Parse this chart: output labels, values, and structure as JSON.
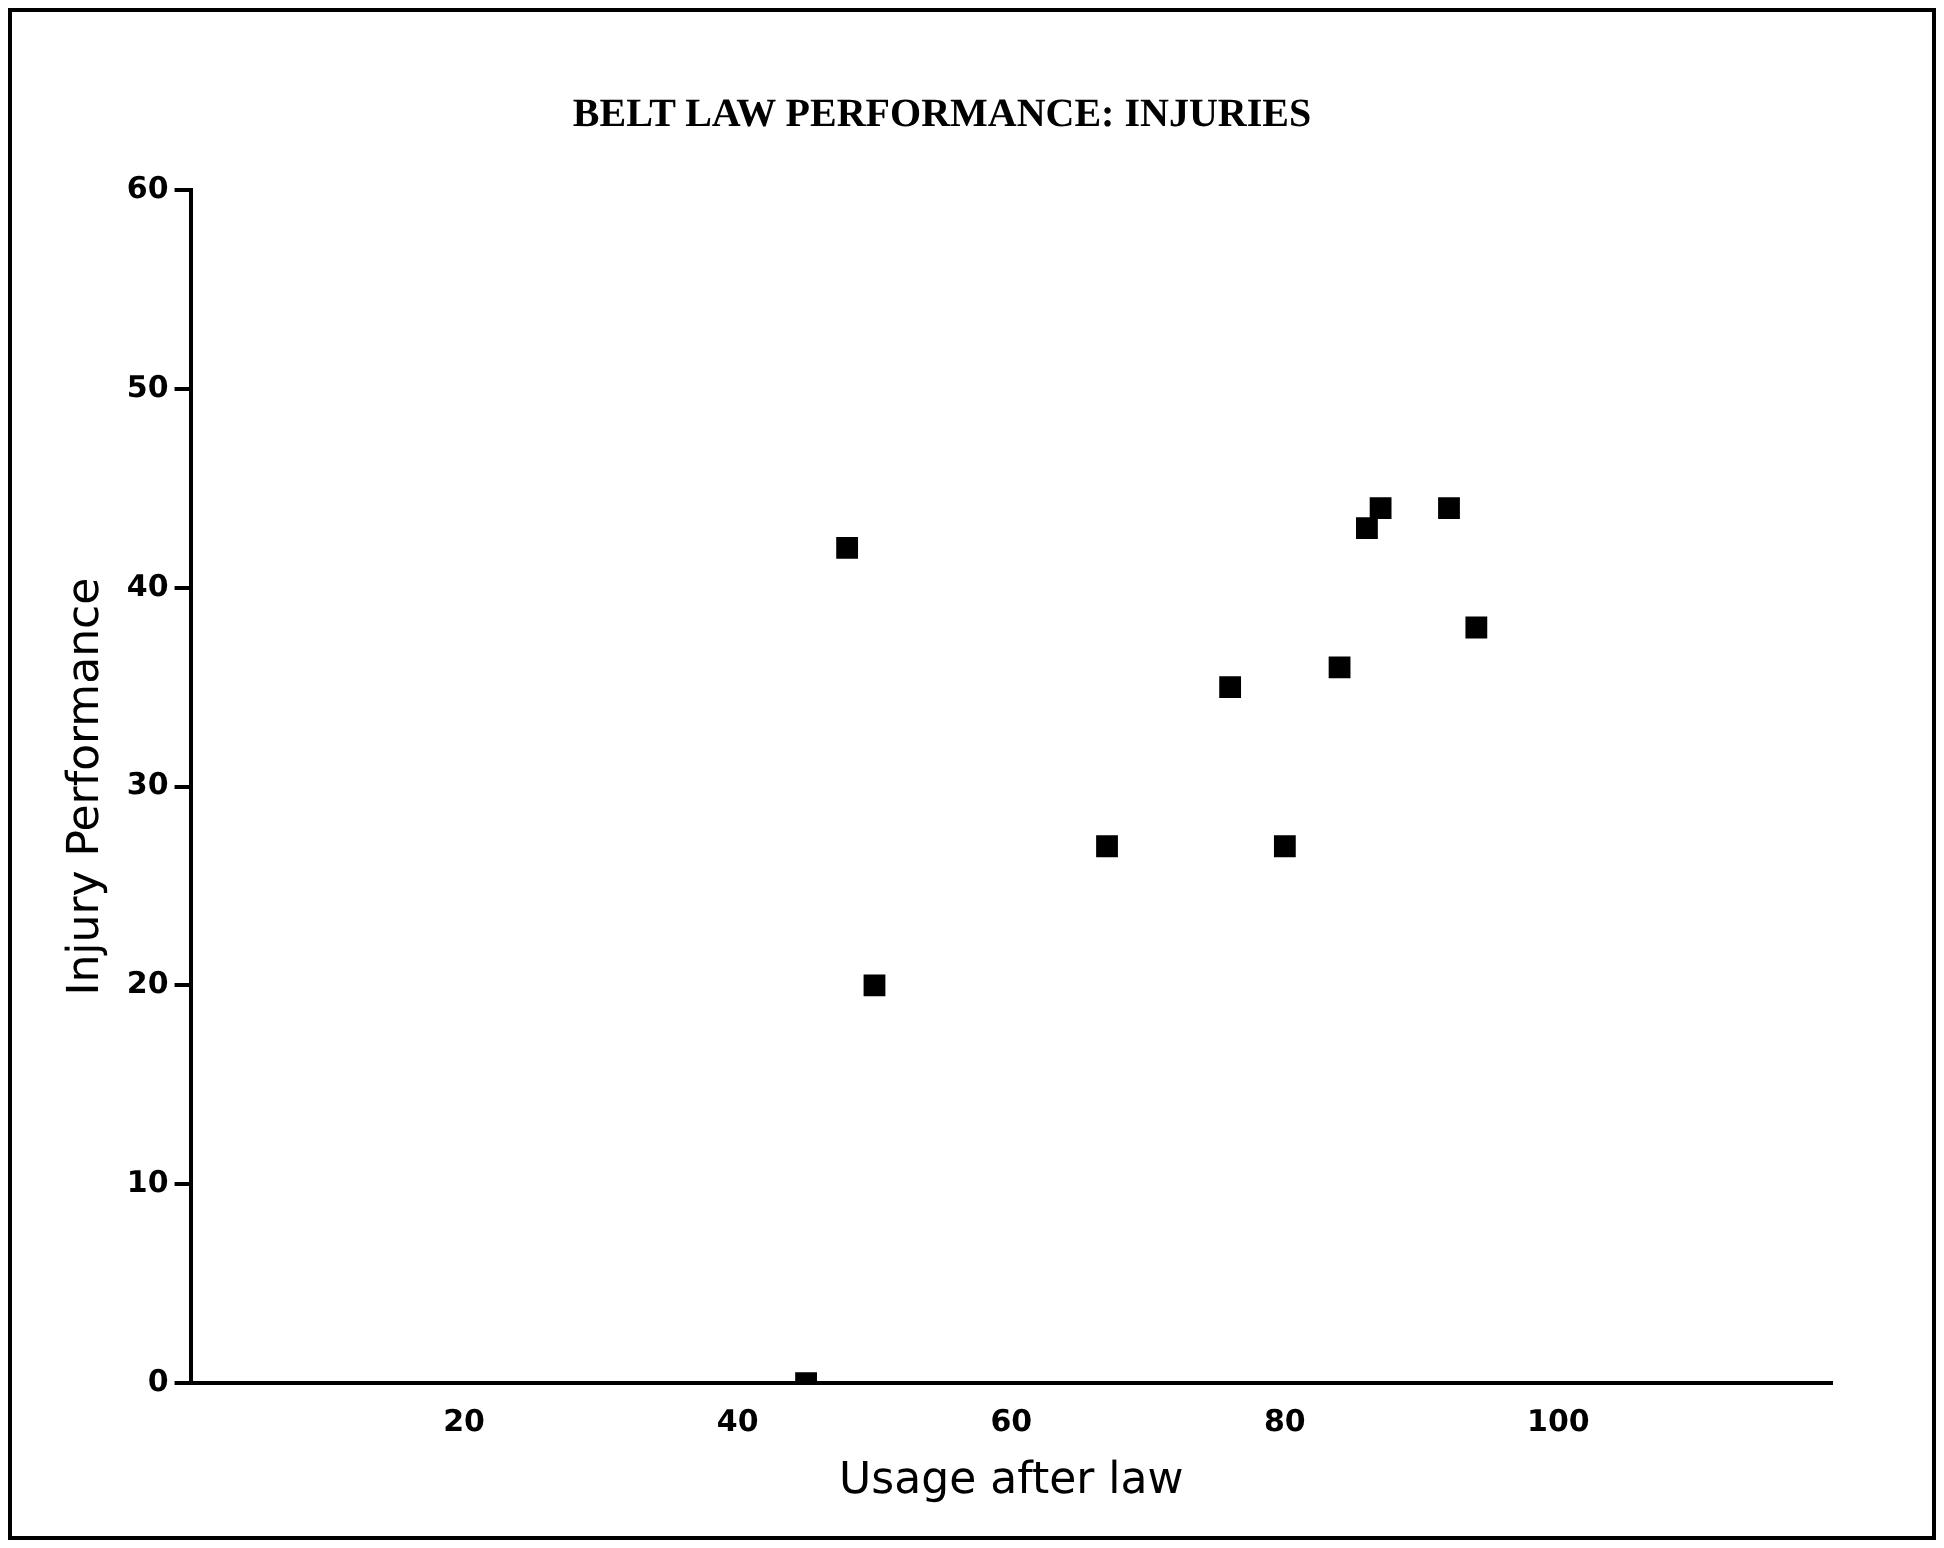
{
  "chart_data": {
    "type": "scatter",
    "title": "BELT LAW PERFORMANCE: INJURIES",
    "xlabel": "Usage after law",
    "ylabel": "Injury Performance",
    "x": [
      45,
      48,
      50,
      67,
      76,
      80,
      84,
      86,
      87,
      92,
      94
    ],
    "values": [
      0,
      42,
      20,
      27,
      35,
      27,
      36,
      43,
      44,
      44,
      38
    ],
    "color": "#000000",
    "marker": "square",
    "grid": false,
    "legend": false,
    "xlim": [
      0,
      120
    ],
    "xticks": [
      20,
      40,
      60,
      80,
      100
    ],
    "ylim": [
      0,
      60
    ],
    "yticks": [
      0,
      10,
      20,
      30,
      40,
      50,
      60
    ]
  }
}
